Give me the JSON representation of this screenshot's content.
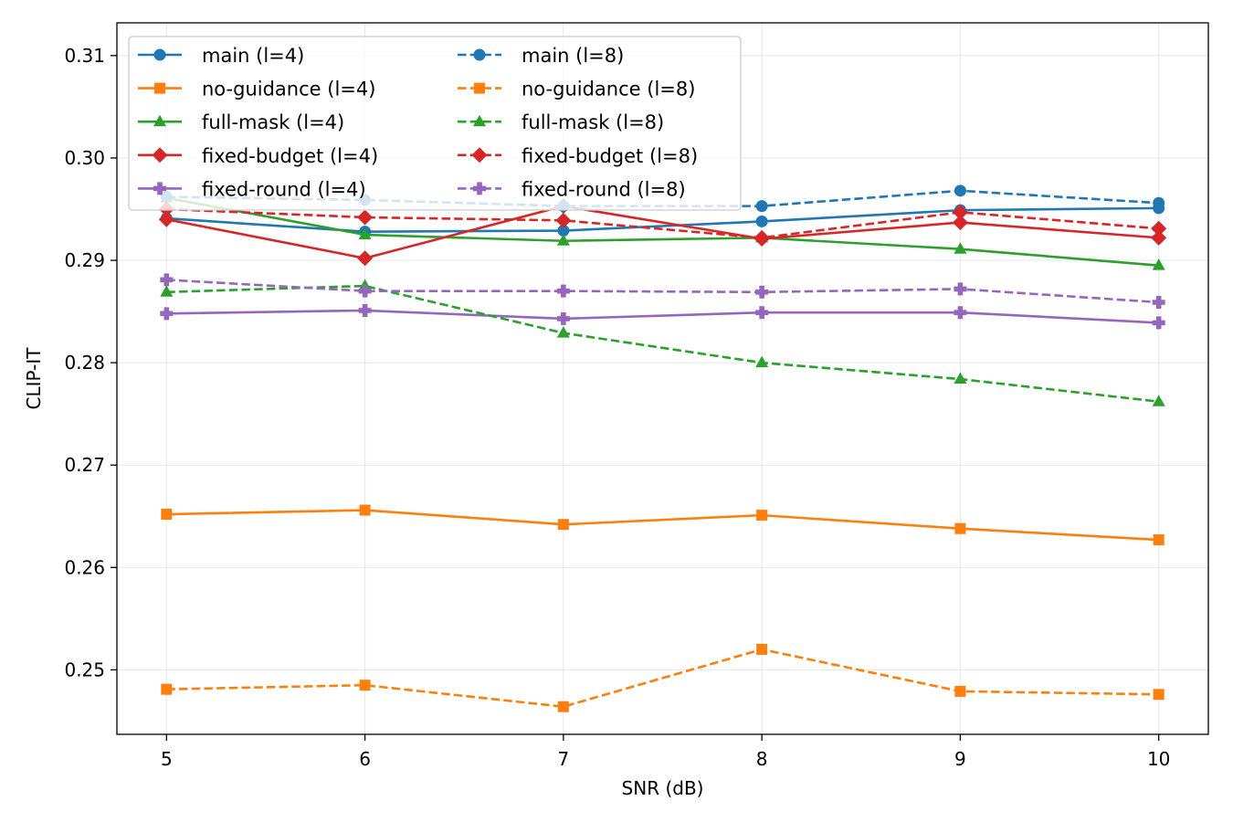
{
  "chart_data": {
    "type": "line",
    "title": "",
    "xlabel": "SNR (dB)",
    "ylabel": "CLIP-IT",
    "x": [
      5,
      6,
      7,
      8,
      9,
      10
    ],
    "xlim": [
      4.75,
      10.25
    ],
    "ylim": [
      0.2437,
      0.3132
    ],
    "xticks": [
      5,
      6,
      7,
      8,
      9,
      10
    ],
    "xtick_labels": [
      "5",
      "6",
      "7",
      "8",
      "9",
      "10"
    ],
    "yticks": [
      0.25,
      0.26,
      0.27,
      0.28,
      0.29,
      0.3,
      0.31
    ],
    "ytick_labels": [
      "0.25",
      "0.26",
      "0.27",
      "0.28",
      "0.29",
      "0.30",
      "0.31"
    ],
    "grid": true,
    "legend": {
      "position": "upper-left",
      "columns": 2
    },
    "series": [
      {
        "name": "main (l=4)",
        "color": "#1f77b4",
        "dash": "solid",
        "marker": "circle",
        "values": [
          0.2941,
          0.2928,
          0.2929,
          0.2938,
          0.2949,
          0.2951
        ]
      },
      {
        "name": "no-guidance (l=4)",
        "color": "#ff7f0e",
        "dash": "solid",
        "marker": "square",
        "values": [
          0.2652,
          0.2656,
          0.2642,
          0.2651,
          0.2638,
          0.2627
        ]
      },
      {
        "name": "full-mask (l=4)",
        "color": "#2ca02c",
        "dash": "solid",
        "marker": "triangle",
        "values": [
          0.2961,
          0.2925,
          0.2919,
          0.2922,
          0.2911,
          0.2895
        ]
      },
      {
        "name": "fixed-budget (l=4)",
        "color": "#d62728",
        "dash": "solid",
        "marker": "diamond",
        "values": [
          0.294,
          0.2902,
          0.2953,
          0.2921,
          0.2937,
          0.2922
        ]
      },
      {
        "name": "fixed-round (l=4)",
        "color": "#9467bd",
        "dash": "solid",
        "marker": "plus",
        "values": [
          0.2848,
          0.2851,
          0.2843,
          0.2849,
          0.2849,
          0.2839
        ]
      },
      {
        "name": "main (l=8)",
        "color": "#1f77b4",
        "dash": "dashed",
        "marker": "circle",
        "values": [
          0.2962,
          0.2959,
          0.2953,
          0.2953,
          0.2968,
          0.2956
        ]
      },
      {
        "name": "no-guidance (l=8)",
        "color": "#ff7f0e",
        "dash": "dashed",
        "marker": "square",
        "values": [
          0.2481,
          0.2485,
          0.2464,
          0.252,
          0.2479,
          0.2476
        ]
      },
      {
        "name": "full-mask (l=8)",
        "color": "#2ca02c",
        "dash": "dashed",
        "marker": "triangle",
        "values": [
          0.2869,
          0.2875,
          0.2829,
          0.28,
          0.2784,
          0.2762
        ]
      },
      {
        "name": "fixed-budget (l=8)",
        "color": "#d62728",
        "dash": "dashed",
        "marker": "diamond",
        "values": [
          0.295,
          0.2942,
          0.2939,
          0.2922,
          0.2947,
          0.2931
        ]
      },
      {
        "name": "fixed-round (l=8)",
        "color": "#9467bd",
        "dash": "dashed",
        "marker": "plus",
        "values": [
          0.2881,
          0.287,
          0.287,
          0.2869,
          0.2872,
          0.2859
        ]
      }
    ]
  }
}
